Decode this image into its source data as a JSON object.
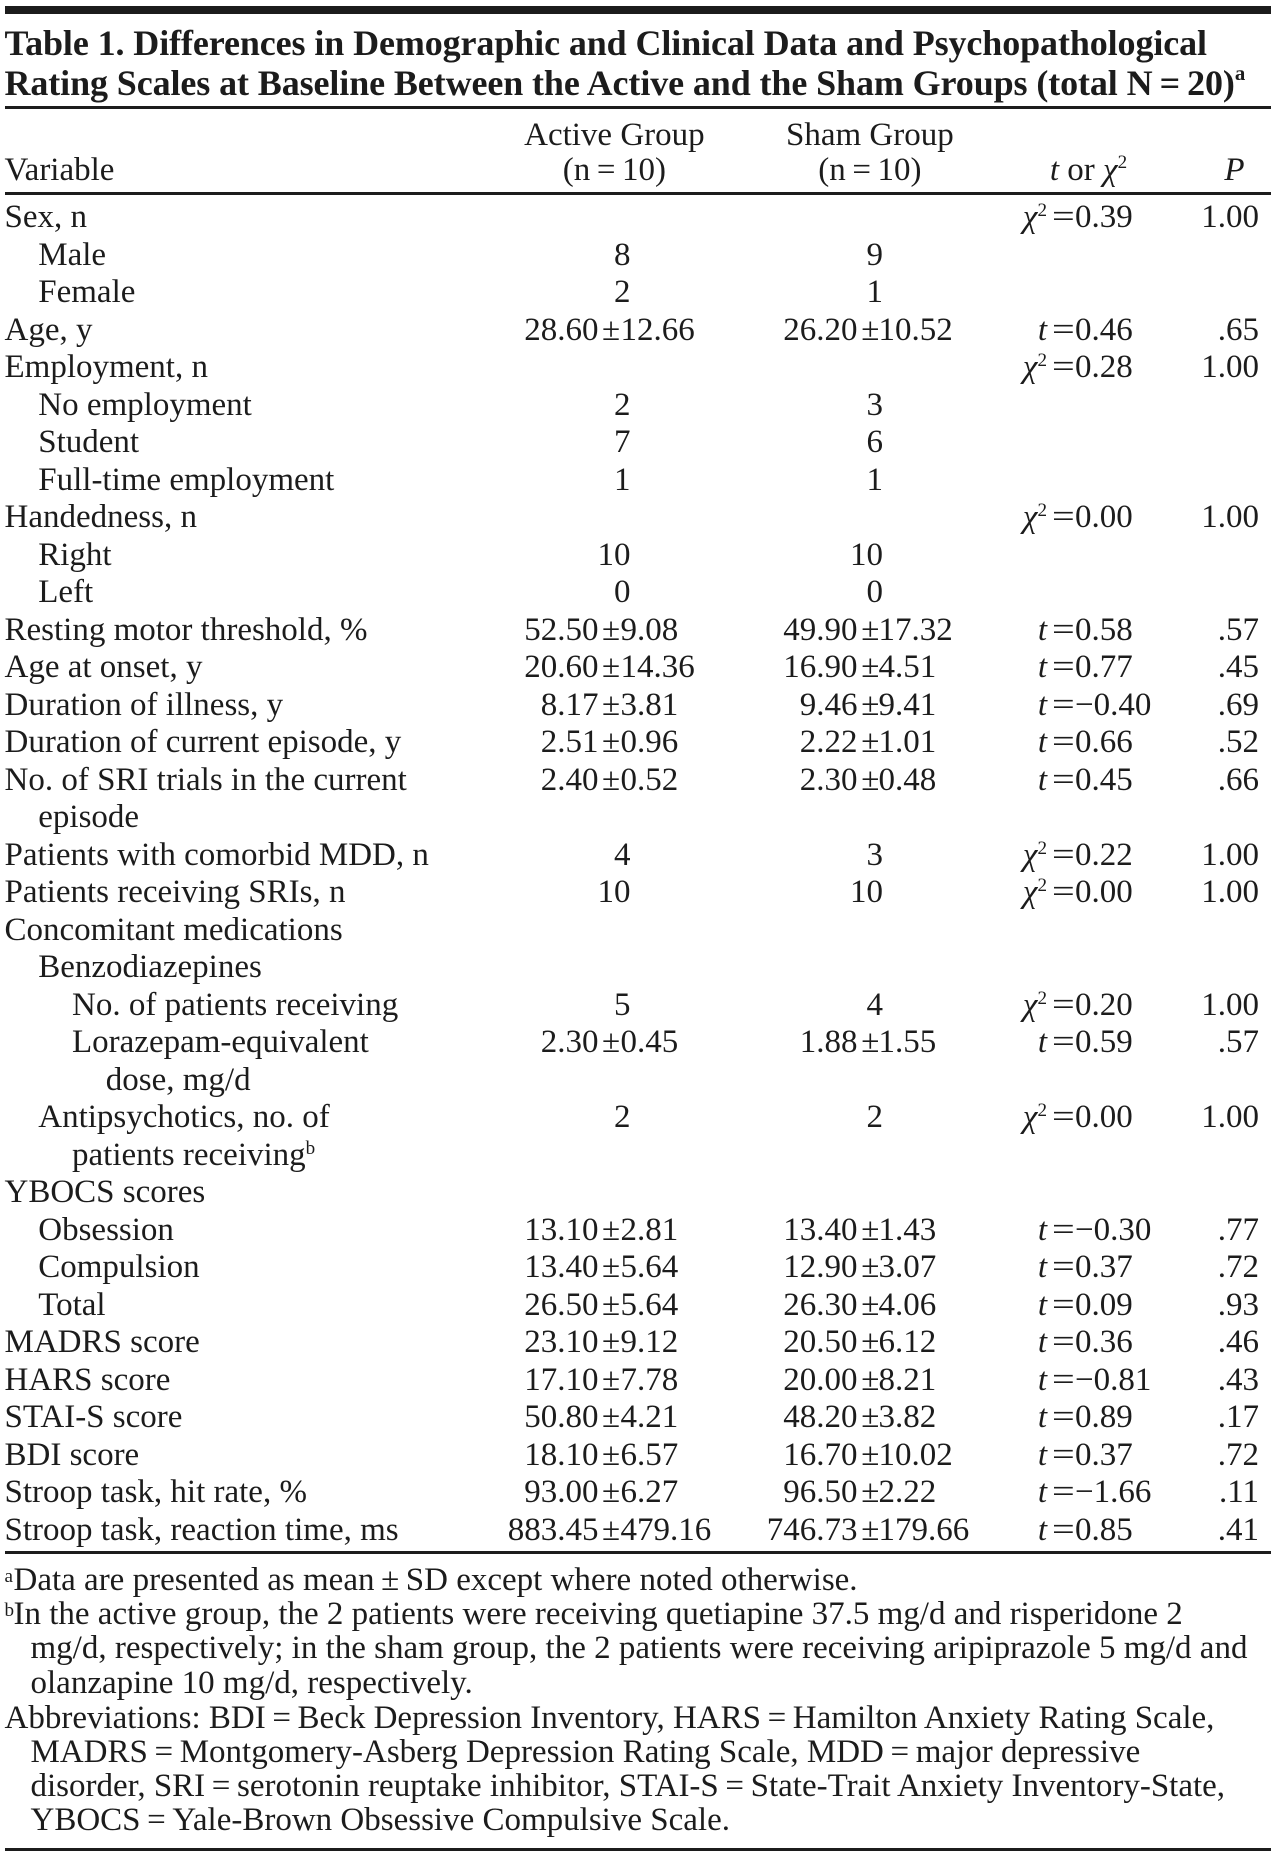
{
  "title": {
    "line1": "Table 1. Differences in Demographic and Clinical Data and Psychopathological",
    "line2": "Rating Scales at Baseline Between the Active and the Sham Groups (total N = 20)",
    "superscript": "a"
  },
  "header": {
    "variable": "Variable",
    "active_group_line1": "Active Group",
    "active_group_line2": "(n = 10)",
    "sham_group_line1": "Sham Group",
    "sham_group_line2": "(n = 10)",
    "stat_t": "t",
    "stat_or": " or ",
    "stat_chi": "χ",
    "stat_chi_sup": "2",
    "p": "P"
  },
  "rows": [
    {
      "label_lines": [
        "Sex, n"
      ],
      "indent": 0,
      "stat": {
        "sym": "χ",
        "sup": "2",
        "val": "0.39"
      },
      "p": "1.00"
    },
    {
      "label_lines": [
        "Male"
      ],
      "indent": 1,
      "active_int": "8",
      "sham_int": "9"
    },
    {
      "label_lines": [
        "Female"
      ],
      "indent": 1,
      "active_int": "2",
      "sham_int": "1"
    },
    {
      "label_lines": [
        "Age, y"
      ],
      "indent": 0,
      "active_mean": "28.60",
      "active_sd": "12.66",
      "sham_mean": "26.20",
      "sham_sd": "10.52",
      "stat": {
        "sym": "t",
        "val": "0.46"
      },
      "p": ".65"
    },
    {
      "label_lines": [
        "Employment, n"
      ],
      "indent": 0,
      "stat": {
        "sym": "χ",
        "sup": "2",
        "val": "0.28"
      },
      "p": "1.00"
    },
    {
      "label_lines": [
        "No employment"
      ],
      "indent": 1,
      "active_int": "2",
      "sham_int": "3"
    },
    {
      "label_lines": [
        "Student"
      ],
      "indent": 1,
      "active_int": "7",
      "sham_int": "6"
    },
    {
      "label_lines": [
        "Full-time employment"
      ],
      "indent": 1,
      "active_int": "1",
      "sham_int": "1"
    },
    {
      "label_lines": [
        "Handedness, n"
      ],
      "indent": 0,
      "stat": {
        "sym": "χ",
        "sup": "2",
        "val": "0.00"
      },
      "p": "1.00"
    },
    {
      "label_lines": [
        "Right"
      ],
      "indent": 1,
      "active_int": "10",
      "sham_int": "10"
    },
    {
      "label_lines": [
        "Left"
      ],
      "indent": 1,
      "active_int": "0",
      "sham_int": "0"
    },
    {
      "label_lines": [
        "Resting motor threshold, %"
      ],
      "indent": 0,
      "active_mean": "52.50",
      "active_sd": "9.08",
      "sham_mean": "49.90",
      "sham_sd": "17.32",
      "stat": {
        "sym": "t",
        "val": "0.58"
      },
      "p": ".57"
    },
    {
      "label_lines": [
        "Age at onset, y"
      ],
      "indent": 0,
      "active_mean": "20.60",
      "active_sd": "14.36",
      "sham_mean": "16.90",
      "sham_sd": "4.51",
      "stat": {
        "sym": "t",
        "val": "0.77"
      },
      "p": ".45"
    },
    {
      "label_lines": [
        "Duration of illness, y"
      ],
      "indent": 0,
      "active_mean": "8.17",
      "active_sd": "3.81",
      "sham_mean": "9.46",
      "sham_sd": "9.41",
      "stat": {
        "sym": "t",
        "val": "−0.40"
      },
      "p": ".69"
    },
    {
      "label_lines": [
        "Duration of current episode, y"
      ],
      "indent": 0,
      "active_mean": "2.51",
      "active_sd": "0.96",
      "sham_mean": "2.22",
      "sham_sd": "1.01",
      "stat": {
        "sym": "t",
        "val": "0.66"
      },
      "p": ".52"
    },
    {
      "label_lines": [
        "No. of SRI trials in the current",
        "episode"
      ],
      "indent": 0,
      "active_mean": "2.40",
      "active_sd": "0.52",
      "sham_mean": "2.30",
      "sham_sd": "0.48",
      "stat": {
        "sym": "t",
        "val": "0.45"
      },
      "p": ".66"
    },
    {
      "label_lines": [
        "Patients with comorbid MDD, n"
      ],
      "indent": 0,
      "active_int": "4",
      "sham_int": "3",
      "stat": {
        "sym": "χ",
        "sup": "2",
        "val": "0.22"
      },
      "p": "1.00"
    },
    {
      "label_lines": [
        "Patients receiving SRIs, n"
      ],
      "indent": 0,
      "active_int": "10",
      "sham_int": "10",
      "stat": {
        "sym": "χ",
        "sup": "2",
        "val": "0.00"
      },
      "p": "1.00"
    },
    {
      "label_lines": [
        "Concomitant medications"
      ],
      "indent": 0
    },
    {
      "label_lines": [
        "Benzodiazepines"
      ],
      "indent": 1
    },
    {
      "label_lines": [
        "No. of patients receiving"
      ],
      "indent": 2,
      "active_int": "5",
      "sham_int": "4",
      "stat": {
        "sym": "χ",
        "sup": "2",
        "val": "0.20"
      },
      "p": "1.00"
    },
    {
      "label_lines": [
        "Lorazepam-equivalent",
        "dose, mg/d"
      ],
      "indent": 2,
      "active_mean": "2.30",
      "active_sd": "0.45",
      "sham_mean": "1.88",
      "sham_sd": "1.55",
      "stat": {
        "sym": "t",
        "val": "0.59"
      },
      "p": ".57"
    },
    {
      "label_lines": [
        "Antipsychotics, no. of",
        "patients receiving"
      ],
      "label_sup": "b",
      "indent": 1,
      "active_int": "2",
      "sham_int": "2",
      "stat": {
        "sym": "χ",
        "sup": "2",
        "val": "0.00"
      },
      "p": "1.00"
    },
    {
      "label_lines": [
        "YBOCS scores"
      ],
      "indent": 0
    },
    {
      "label_lines": [
        "Obsession"
      ],
      "indent": 1,
      "active_mean": "13.10",
      "active_sd": "2.81",
      "sham_mean": "13.40",
      "sham_sd": "1.43",
      "stat": {
        "sym": "t",
        "val": "−0.30"
      },
      "p": ".77"
    },
    {
      "label_lines": [
        "Compulsion"
      ],
      "indent": 1,
      "active_mean": "13.40",
      "active_sd": "5.64",
      "sham_mean": "12.90",
      "sham_sd": "3.07",
      "stat": {
        "sym": "t",
        "val": "0.37"
      },
      "p": ".72"
    },
    {
      "label_lines": [
        "Total"
      ],
      "indent": 1,
      "active_mean": "26.50",
      "active_sd": "5.64",
      "sham_mean": "26.30",
      "sham_sd": "4.06",
      "stat": {
        "sym": "t",
        "val": "0.09"
      },
      "p": ".93"
    },
    {
      "label_lines": [
        "MADRS score"
      ],
      "indent": 0,
      "active_mean": "23.10",
      "active_sd": "9.12",
      "sham_mean": "20.50",
      "sham_sd": "6.12",
      "stat": {
        "sym": "t",
        "val": "0.36"
      },
      "p": ".46"
    },
    {
      "label_lines": [
        "HARS score"
      ],
      "indent": 0,
      "active_mean": "17.10",
      "active_sd": "7.78",
      "sham_mean": "20.00",
      "sham_sd": "8.21",
      "stat": {
        "sym": "t",
        "val": "−0.81"
      },
      "p": ".43"
    },
    {
      "label_lines": [
        "STAI-S score"
      ],
      "indent": 0,
      "active_mean": "50.80",
      "active_sd": "4.21",
      "sham_mean": "48.20",
      "sham_sd": "3.82",
      "stat": {
        "sym": "t",
        "val": "0.89"
      },
      "p": ".17"
    },
    {
      "label_lines": [
        "BDI score"
      ],
      "indent": 0,
      "active_mean": "18.10",
      "active_sd": "6.57",
      "sham_mean": "16.70",
      "sham_sd": "10.02",
      "stat": {
        "sym": "t",
        "val": "0.37"
      },
      "p": ".72"
    },
    {
      "label_lines": [
        "Stroop task, hit rate, %"
      ],
      "indent": 0,
      "active_mean": "93.00",
      "active_sd": "6.27",
      "sham_mean": "96.50",
      "sham_sd": "2.22",
      "stat": {
        "sym": "t",
        "val": "−1.66"
      },
      "p": ".11"
    },
    {
      "label_lines": [
        "Stroop task, reaction time, ms"
      ],
      "indent": 0,
      "active_mean": "883.45",
      "active_sd": "479.16",
      "sham_mean": "746.73",
      "sham_sd": "179.66",
      "stat": {
        "sym": "t",
        "val": "0.85"
      },
      "p": ".41"
    }
  ],
  "plus_minus": "±",
  "equals": "=",
  "footnotes": {
    "a_marker": "a",
    "a_lines": [
      "Data are presented as mean ± SD except where noted otherwise."
    ],
    "b_marker": "b",
    "b_lines": [
      "In the active group, the 2 patients were receiving quetiapine 37.5 mg/d and risperidone 2",
      "mg/d, respectively; in the sham group, the 2 patients were receiving aripiprazole 5 mg/d and",
      "olanzapine 10 mg/d, respectively."
    ],
    "abbrev_lines": [
      "Abbreviations: BDI = Beck Depression Inventory, HARS = Hamilton Anxiety Rating Scale,",
      "MADRS = Montgomery-Asberg Depression Rating Scale, MDD = major depressive",
      "disorder, SRI = serotonin reuptake inhibitor, STAI-S = State-Trait Anxiety Inventory-State,",
      "YBOCS = Yale-Brown Obsessive Compulsive Scale."
    ]
  }
}
